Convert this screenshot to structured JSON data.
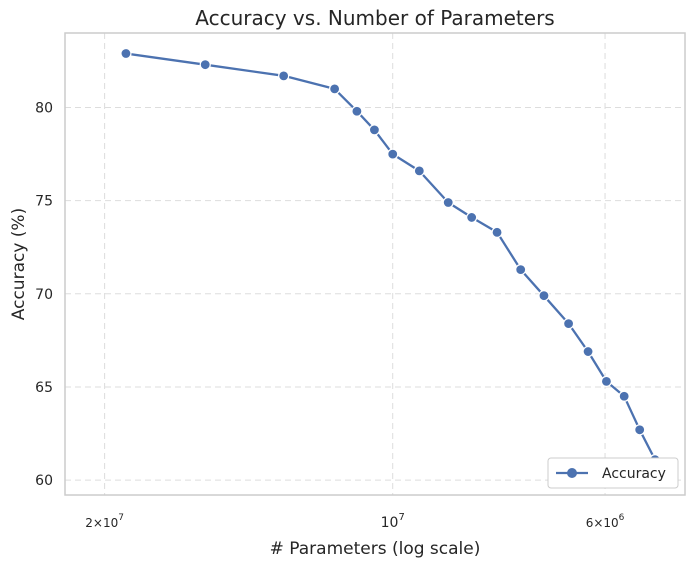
{
  "chart_data": {
    "type": "line",
    "title": "Accuracy vs. Number of Parameters",
    "xlabel": "# Parameters (log scale)",
    "ylabel": "Accuracy (%)",
    "x_scale": "log",
    "x_axis_reversed": true,
    "x_ticks": [
      {
        "value": 20000000,
        "base": "2×10",
        "exp": "7"
      },
      {
        "value": 10000000,
        "base": "10",
        "exp": "7"
      },
      {
        "value": 6000000,
        "base": "6×10",
        "exp": "6"
      }
    ],
    "y_ticks": [
      60,
      65,
      70,
      75,
      80
    ],
    "ylim": [
      59.2,
      84.0
    ],
    "xlim": [
      22000000,
      4950000
    ],
    "grid": true,
    "legend_position": "lower-right",
    "colors": {
      "series": "#4c72b0",
      "grid": "#dddddd",
      "frame": "#cccccc"
    },
    "series": [
      {
        "name": "Accuracy",
        "x": [
          19000000,
          15700000,
          13000000,
          11500000,
          10900000,
          10450000,
          10000000,
          9380000,
          8750000,
          8270000,
          7780000,
          7350000,
          6950000,
          6550000,
          6250000,
          5980000,
          5730000,
          5520000,
          5320000,
          5170000
        ],
        "y": [
          82.9,
          82.3,
          81.7,
          81.0,
          79.8,
          78.8,
          77.5,
          76.6,
          74.9,
          74.1,
          73.3,
          71.3,
          69.9,
          68.4,
          66.9,
          65.3,
          64.5,
          62.7,
          61.1,
          60.7
        ]
      }
    ]
  }
}
